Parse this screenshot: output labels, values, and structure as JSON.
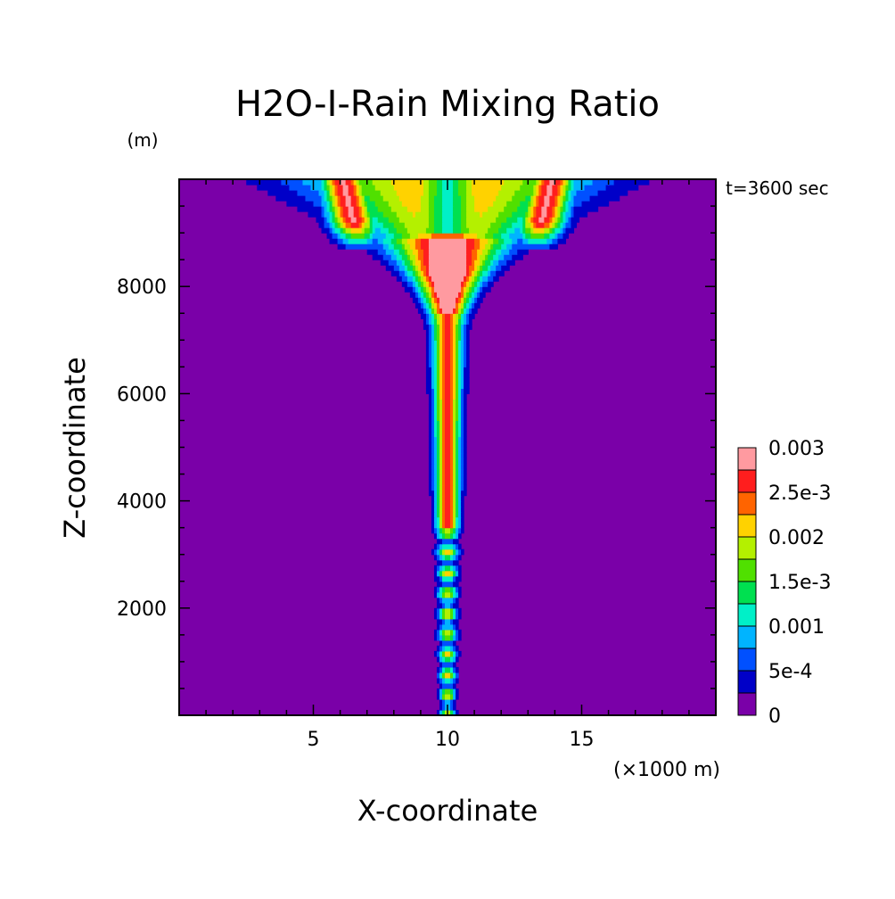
{
  "chart_data": {
    "type": "heatmap",
    "title": "H2O-I-Rain Mixing Ratio",
    "xlabel": "X-coordinate",
    "ylabel": "Z-coordinate",
    "x_unit": "(×1000 m)",
    "y_unit": "(m)",
    "time_label": "t=3600 sec",
    "xlim": [
      0,
      20
    ],
    "ylim": [
      0,
      10000
    ],
    "x_ticks": [
      5,
      10,
      15
    ],
    "y_ticks": [
      2000,
      4000,
      6000,
      8000
    ],
    "colorbar": {
      "levels": [
        0,
        0.00025,
        0.0005,
        0.00075,
        0.001,
        0.00125,
        0.0015,
        0.00175,
        0.002,
        0.00225,
        0.0025,
        0.00275,
        0.003
      ],
      "labels": [
        "0",
        "5e-4",
        "0.001",
        "1.5e-3",
        "0.002",
        "2.5e-3",
        "0.003"
      ],
      "colors": [
        "#7a00a8",
        "#0000c8",
        "#0050ff",
        "#00b4ff",
        "#00f0c8",
        "#00e050",
        "#50e000",
        "#b4f000",
        "#ffd200",
        "#ff6400",
        "#ff1e1e",
        "#ff9aa0"
      ]
    },
    "field_description": "Plume of rain mixing ratio centred at x=10 km, narrow column near surface widening into anvil at top (8000-10000 m), max values 0.003 near x=10 km, z≈8200 m"
  }
}
